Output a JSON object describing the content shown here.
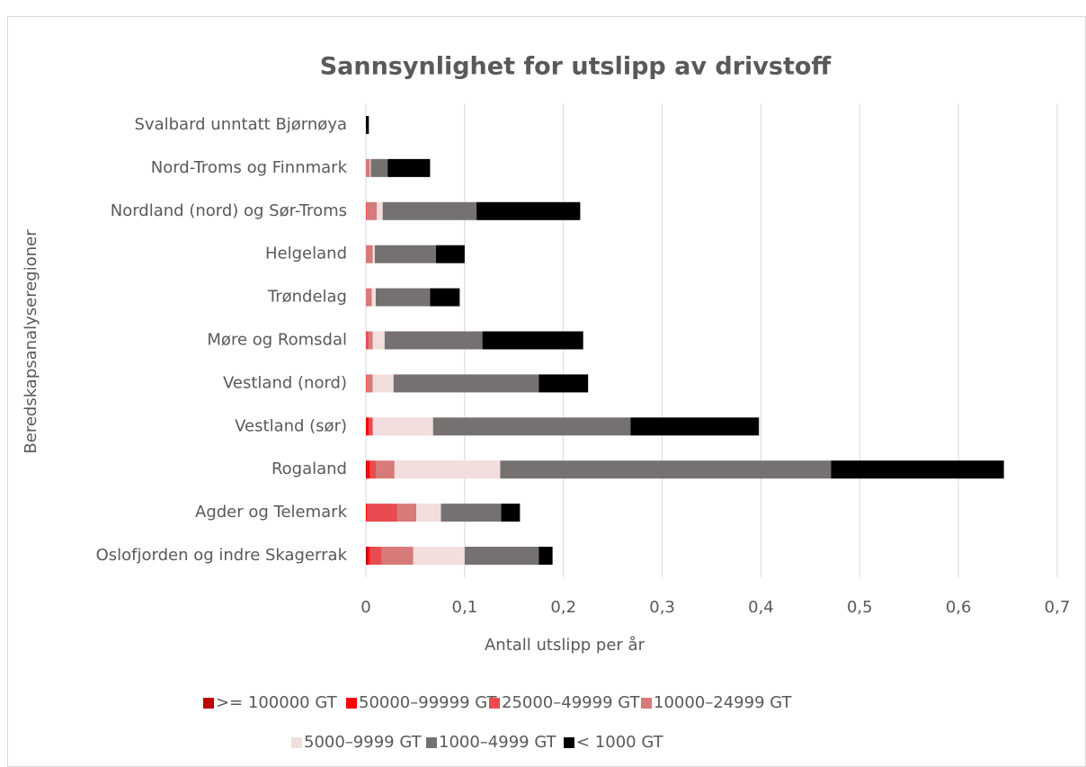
{
  "chart_data": {
    "type": "stacked_barh",
    "title": "Sannsynlighet for utslipp av drivstoff",
    "xlabel": "Antall utslipp per år",
    "ylabel": "Beredskapsanalyseregioner",
    "categories": [
      "Svalbard unntatt Bjørnøya",
      "Nord-Troms og Finnmark",
      "Nordland (nord) og Sør-Troms",
      "Helgeland",
      "Trøndelag",
      "Møre og Romsdal",
      "Vestland (nord)",
      "Vestland (sør)",
      "Rogaland",
      "Agder og Telemark",
      "Oslofjorden og indre Skagerrak"
    ],
    "series": [
      {
        "name": ">= 100000 GT",
        "color": "#c00000",
        "values": [
          0,
          0,
          0,
          0,
          0,
          0,
          0,
          0,
          0.001,
          0,
          0.002
        ]
      },
      {
        "name": "50000–99999 GT",
        "color": "#ff0000",
        "values": [
          0,
          0,
          0,
          0,
          0,
          0,
          0,
          0.003,
          0.003,
          0.001,
          0.002
        ]
      },
      {
        "name": "25000–49999 GT",
        "color": "#e84c50",
        "values": [
          0,
          0,
          0.001,
          0,
          0,
          0.003,
          0.001,
          0.004,
          0.006,
          0.031,
          0.012
        ]
      },
      {
        "name": "10000–24999 GT",
        "color": "#d67a7a",
        "values": [
          0,
          0.004,
          0.01,
          0.007,
          0.006,
          0.004,
          0.006,
          0,
          0.019,
          0.019,
          0.032
        ]
      },
      {
        "name": "5000–9999 GT",
        "color": "#f2dedd",
        "values": [
          0,
          0.001,
          0.006,
          0.002,
          0.004,
          0.012,
          0.021,
          0.061,
          0.107,
          0.025,
          0.052
        ]
      },
      {
        "name": "1000–4999 GT",
        "color": "#767171",
        "values": [
          0,
          0.017,
          0.095,
          0.062,
          0.055,
          0.099,
          0.147,
          0.2,
          0.335,
          0.061,
          0.075
        ]
      },
      {
        "name": "< 1000 GT",
        "color": "#000000",
        "values": [
          0.003,
          0.043,
          0.105,
          0.029,
          0.03,
          0.102,
          0.05,
          0.13,
          0.175,
          0.019,
          0.014
        ]
      }
    ],
    "xlim": [
      0,
      0.7
    ],
    "xticks": [
      0,
      {
        "value": 0.1,
        "label": "0,1"
      },
      {
        "value": 0.2,
        "label": "0,2"
      },
      {
        "value": 0.3,
        "label": "0,3"
      },
      {
        "value": 0.4,
        "label": "0,4"
      },
      {
        "value": 0.5,
        "label": "0,5"
      },
      {
        "value": 0.6,
        "label": "0,6"
      },
      {
        "value": 0.7,
        "label": "0,7"
      }
    ],
    "grid": true,
    "legend": "bottom"
  }
}
